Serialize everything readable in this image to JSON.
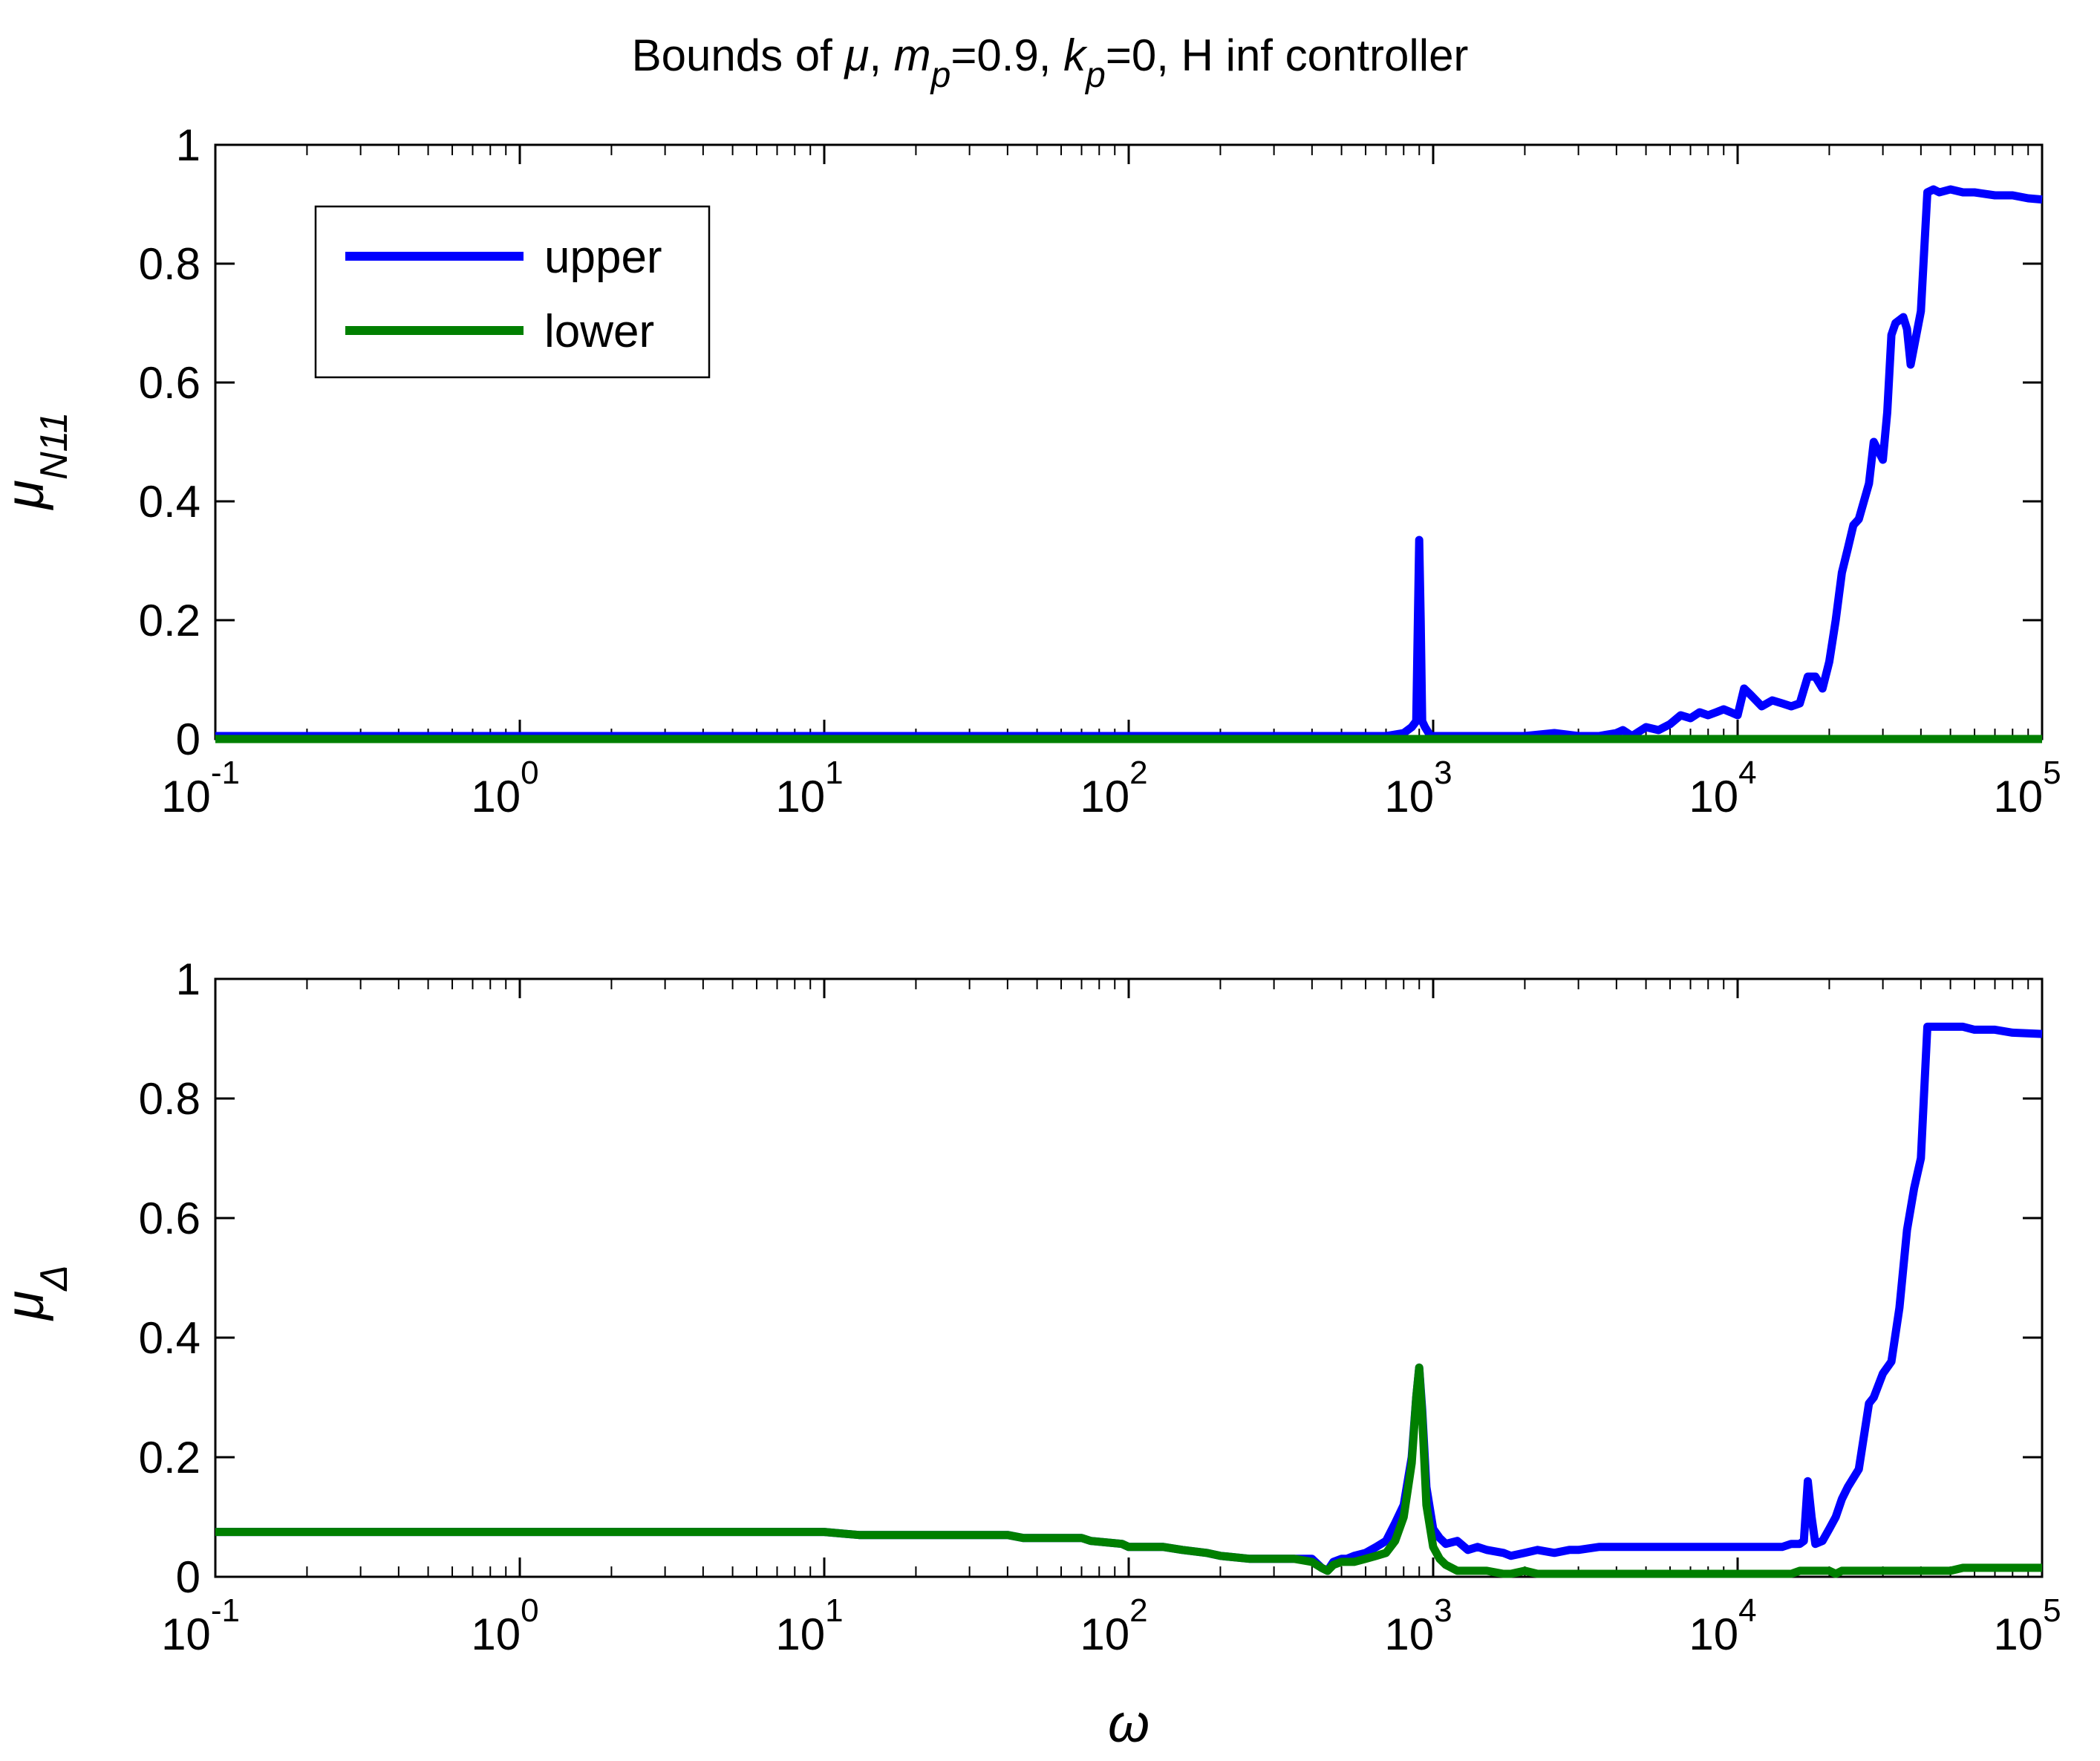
{
  "title": {
    "prefix": "Bounds of ",
    "mu": "μ",
    "mid1": ", ",
    "m": "m",
    "m_sub": "p",
    "m_val": "=0.9, ",
    "k": "k",
    "k_sub": "p",
    "k_val": "=0, H inf controller"
  },
  "xlabel": "ω",
  "colors": {
    "upper": "#0000ff",
    "lower": "#007f00",
    "axes": "#000000"
  },
  "chart_data": [
    {
      "type": "line",
      "ylabel": {
        "main": "μ",
        "sub": "N11"
      },
      "x_scale": "log",
      "xlim": [
        0.1,
        100000
      ],
      "ylim": [
        0,
        1
      ],
      "x_ticks": [
        {
          "base": "10",
          "exp": "-1",
          "value": 0.1
        },
        {
          "base": "10",
          "exp": "0",
          "value": 1
        },
        {
          "base": "10",
          "exp": "1",
          "value": 10
        },
        {
          "base": "10",
          "exp": "2",
          "value": 100
        },
        {
          "base": "10",
          "exp": "3",
          "value": 1000
        },
        {
          "base": "10",
          "exp": "4",
          "value": 10000
        },
        {
          "base": "10",
          "exp": "5",
          "value": 100000
        }
      ],
      "y_ticks": [
        "0",
        "0.2",
        "0.4",
        "0.6",
        "0.8",
        "1"
      ],
      "grid": false,
      "legend": {
        "placement": "top-left",
        "entries": [
          "upper",
          "lower"
        ]
      },
      "series": [
        {
          "name": "upper",
          "x": [
            0.1,
            100,
            700,
            800,
            850,
            880,
            900,
            910,
            920,
            940,
            980,
            1050,
            1200,
            1500,
            2000,
            2500,
            3000,
            3500,
            4000,
            4200,
            4500,
            5000,
            5500,
            6000,
            6500,
            7000,
            7500,
            8000,
            8500,
            9000,
            9500,
            10000,
            10500,
            11000,
            12000,
            13000,
            14000,
            15000,
            16000,
            17000,
            18000,
            19000,
            20000,
            21000,
            22000,
            23000,
            24000,
            25000,
            27000,
            28000,
            30000,
            31000,
            32000,
            33000,
            35000,
            36000,
            37000,
            40000,
            42000,
            44000,
            46000,
            50000,
            55000,
            60000,
            70000,
            80000,
            90000,
            100000
          ],
          "y": [
            0.005,
            0.005,
            0.005,
            0.01,
            0.02,
            0.03,
            0.335,
            0.2,
            0.03,
            0.02,
            0.005,
            0.005,
            0.005,
            0.005,
            0.005,
            0.01,
            0.005,
            0.005,
            0.01,
            0.015,
            0.005,
            0.02,
            0.015,
            0.025,
            0.04,
            0.035,
            0.045,
            0.04,
            0.045,
            0.05,
            0.045,
            0.04,
            0.085,
            0.075,
            0.055,
            0.065,
            0.06,
            0.055,
            0.06,
            0.105,
            0.105,
            0.085,
            0.13,
            0.2,
            0.28,
            0.32,
            0.36,
            0.37,
            0.43,
            0.5,
            0.47,
            0.55,
            0.68,
            0.7,
            0.71,
            0.69,
            0.63,
            0.72,
            0.92,
            0.925,
            0.92,
            0.925,
            0.92,
            0.92,
            0.915,
            0.915,
            0.91,
            0.908
          ]
        },
        {
          "name": "lower",
          "x": [
            0.1,
            100000
          ],
          "y": [
            0.0,
            0.0
          ]
        }
      ]
    },
    {
      "type": "line",
      "ylabel": {
        "main": "μ",
        "sub": "Δ"
      },
      "xlabel": "ω",
      "x_scale": "log",
      "xlim": [
        0.1,
        100000
      ],
      "ylim": [
        0,
        1
      ],
      "x_ticks": [
        {
          "base": "10",
          "exp": "-1",
          "value": 0.1
        },
        {
          "base": "10",
          "exp": "0",
          "value": 1
        },
        {
          "base": "10",
          "exp": "1",
          "value": 10
        },
        {
          "base": "10",
          "exp": "2",
          "value": 100
        },
        {
          "base": "10",
          "exp": "3",
          "value": 1000
        },
        {
          "base": "10",
          "exp": "4",
          "value": 10000
        },
        {
          "base": "10",
          "exp": "5",
          "value": 100000
        }
      ],
      "y_ticks": [
        "0",
        "0.2",
        "0.4",
        "0.6",
        "0.8",
        "1"
      ],
      "grid": false,
      "series": [
        {
          "name": "upper",
          "x": [
            0.1,
            10,
            13,
            40,
            45,
            70,
            75,
            95,
            100,
            130,
            150,
            180,
            200,
            250,
            350,
            400,
            430,
            450,
            470,
            500,
            520,
            550,
            600,
            650,
            700,
            750,
            800,
            850,
            880,
            900,
            920,
            950,
            1000,
            1050,
            1100,
            1200,
            1300,
            1400,
            1500,
            1700,
            1800,
            2000,
            2200,
            2500,
            2800,
            3000,
            3500,
            4000,
            6000,
            8000,
            10000,
            14000,
            15000,
            16000,
            16500,
            17000,
            17500,
            18000,
            19000,
            20000,
            21000,
            22000,
            23000,
            25000,
            27000,
            28000,
            30000,
            32000,
            34000,
            36000,
            38000,
            40000,
            42000,
            44000,
            45000,
            46000,
            50000,
            55000,
            60000,
            70000,
            80000,
            100000
          ],
          "y": [
            0.075,
            0.075,
            0.07,
            0.07,
            0.065,
            0.065,
            0.06,
            0.055,
            0.05,
            0.05,
            0.045,
            0.04,
            0.035,
            0.03,
            0.03,
            0.03,
            0.015,
            0.01,
            0.025,
            0.03,
            0.03,
            0.035,
            0.04,
            0.05,
            0.06,
            0.09,
            0.12,
            0.2,
            0.3,
            0.35,
            0.28,
            0.15,
            0.08,
            0.065,
            0.055,
            0.06,
            0.045,
            0.05,
            0.045,
            0.04,
            0.035,
            0.04,
            0.045,
            0.04,
            0.045,
            0.045,
            0.05,
            0.05,
            0.05,
            0.05,
            0.05,
            0.05,
            0.055,
            0.055,
            0.06,
            0.16,
            0.1,
            0.055,
            0.06,
            0.08,
            0.1,
            0.13,
            0.15,
            0.18,
            0.29,
            0.3,
            0.34,
            0.36,
            0.45,
            0.58,
            0.65,
            0.7,
            0.92,
            0.92,
            0.92,
            0.92,
            0.92,
            0.92,
            0.915,
            0.915,
            0.91,
            0.908
          ]
        },
        {
          "name": "lower",
          "x": [
            0.1,
            10,
            13,
            40,
            45,
            70,
            75,
            95,
            100,
            130,
            150,
            180,
            200,
            250,
            350,
            400,
            430,
            450,
            470,
            500,
            520,
            550,
            600,
            650,
            700,
            750,
            800,
            850,
            880,
            900,
            920,
            950,
            1000,
            1050,
            1100,
            1200,
            1300,
            1400,
            1500,
            1700,
            1800,
            2000,
            2200,
            2500,
            3000,
            6000,
            10000,
            15000,
            16000,
            17000,
            18000,
            19000,
            20000,
            21000,
            22000,
            24000,
            30000,
            50000,
            55000,
            100000
          ],
          "y": [
            0.075,
            0.075,
            0.07,
            0.07,
            0.065,
            0.065,
            0.06,
            0.055,
            0.05,
            0.05,
            0.045,
            0.04,
            0.035,
            0.03,
            0.03,
            0.025,
            0.015,
            0.01,
            0.02,
            0.025,
            0.025,
            0.025,
            0.03,
            0.035,
            0.04,
            0.06,
            0.1,
            0.19,
            0.3,
            0.35,
            0.27,
            0.12,
            0.05,
            0.03,
            0.02,
            0.01,
            0.01,
            0.01,
            0.01,
            0.005,
            0.005,
            0.01,
            0.005,
            0.005,
            0.005,
            0.005,
            0.005,
            0.005,
            0.01,
            0.01,
            0.01,
            0.01,
            0.01,
            0.005,
            0.01,
            0.01,
            0.01,
            0.01,
            0.015,
            0.015
          ]
        }
      ]
    }
  ]
}
